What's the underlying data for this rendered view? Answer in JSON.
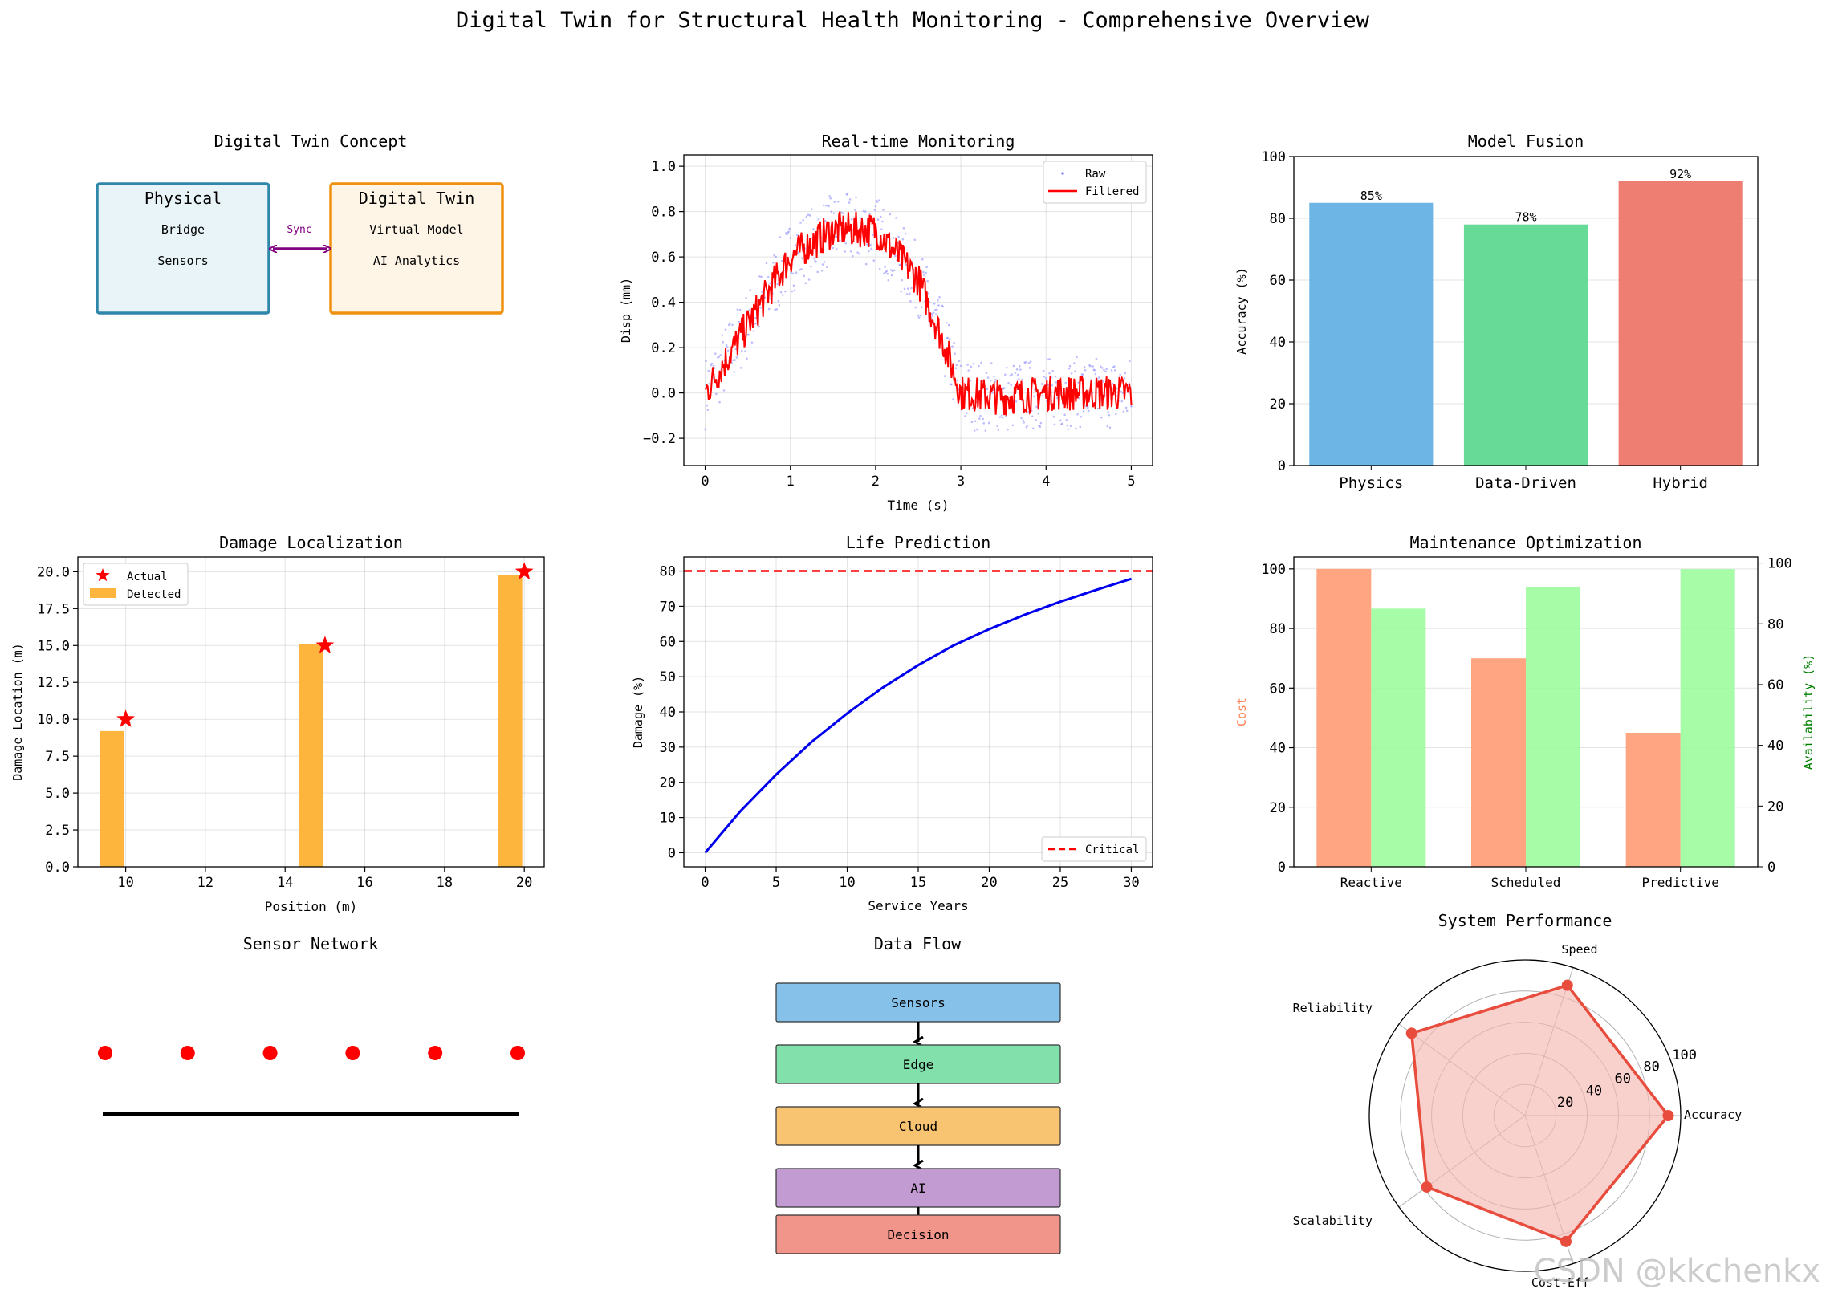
{
  "figure_title": "Digital Twin for Structural Health Monitoring - Comprehensive Overview",
  "watermark": "CSDN @kkchenkx",
  "colors": {
    "physical_border": "#2e86ab",
    "physical_fill": "#e8f4f8",
    "digital_border": "#f0900f",
    "digital_fill": "#fef5e7",
    "sync_arrow": "#800080",
    "raw": "#8888ff",
    "filtered": "#ff0000",
    "physics": "#5dade2",
    "data_driven": "#58d68d",
    "hybrid": "#ec7063",
    "detected": "#fdb53d",
    "actual": "#ff0000",
    "life_curve": "#0000ee",
    "critical": "#ff0000",
    "cost": "#ffa07a",
    "availability": "#98fb98",
    "cost_label": "#ff7f50",
    "availability_label": "#008000",
    "radar_line": "#e74c3c",
    "radar_fill": "#f5b7b1",
    "sensors_box": "#85c1e9",
    "edge_box": "#82e0aa",
    "cloud_box": "#f8c471",
    "ai_box": "#c39bd3",
    "decision_box": "#f1948a"
  },
  "concept": {
    "title": "Digital Twin Concept",
    "physical": {
      "title": "Physical",
      "line1": "Bridge",
      "line2": "Sensors"
    },
    "digital": {
      "title": "Digital Twin",
      "line1": "Virtual Model",
      "line2": "AI Analytics"
    },
    "sync_label": "Sync"
  },
  "chart_data": [
    {
      "id": "monitoring",
      "type": "line",
      "title": "Real-time Monitoring",
      "xlabel": "Time (s)",
      "ylabel": "Disp (mm)",
      "xlim": [
        -0.25,
        5.25
      ],
      "ylim": [
        -0.32,
        1.05
      ],
      "xticks": [
        0,
        1,
        2,
        3,
        4,
        5
      ],
      "yticks": [
        -0.2,
        0.0,
        0.2,
        0.4,
        0.6,
        0.8,
        1.0
      ],
      "ytick_labels": [
        "−0.2",
        "0.0",
        "0.2",
        "0.4",
        "0.6",
        "0.8",
        "1.0"
      ],
      "legend": "top-right",
      "series": [
        {
          "name": "Raw",
          "style": "points"
        },
        {
          "name": "Filtered",
          "style": "line"
        }
      ],
      "envelope": {
        "x": [
          0,
          0.5,
          1.0,
          1.5,
          2.0,
          2.5,
          2.8,
          3.0,
          3.5,
          4.0,
          4.5,
          5.0
        ],
        "y": [
          0.0,
          0.3,
          0.6,
          0.72,
          0.72,
          0.5,
          0.22,
          0.0,
          -0.02,
          0.0,
          0.0,
          0.0
        ]
      }
    },
    {
      "id": "fusion",
      "type": "bar",
      "title": "Model Fusion",
      "ylabel": "Accuracy (%)",
      "categories": [
        "Physics",
        "Data-Driven",
        "Hybrid"
      ],
      "values": [
        85,
        78,
        92
      ],
      "value_labels": [
        "85%",
        "78%",
        "92%"
      ],
      "ylim": [
        0,
        100
      ],
      "yticks": [
        0,
        20,
        40,
        60,
        80,
        100
      ]
    },
    {
      "id": "damage",
      "type": "bar",
      "title": "Damage Localization",
      "xlabel": "Position (m)",
      "ylabel": "Damage Location (m)",
      "xlim": [
        8.8,
        20.5
      ],
      "ylim": [
        0,
        21
      ],
      "xticks": [
        10,
        12,
        14,
        16,
        18,
        20
      ],
      "yticks": [
        0.0,
        2.5,
        5.0,
        7.5,
        10.0,
        12.5,
        15.0,
        17.5,
        20.0
      ],
      "ytick_labels": [
        "0.0",
        "2.5",
        "5.0",
        "7.5",
        "10.0",
        "12.5",
        "15.0",
        "17.5",
        "20.0"
      ],
      "legend": "top-left",
      "series": [
        {
          "name": "Actual",
          "x": [
            10,
            15,
            20
          ],
          "y": [
            10,
            15,
            20
          ]
        },
        {
          "name": "Detected",
          "x": [
            9.65,
            14.65,
            19.65
          ],
          "y": [
            9.2,
            15.1,
            19.8
          ],
          "width": 0.6
        }
      ]
    },
    {
      "id": "life",
      "type": "line",
      "title": "Life Prediction",
      "xlabel": "Service Years",
      "ylabel": "Damage (%)",
      "xlim": [
        -1.5,
        31.5
      ],
      "ylim": [
        -4,
        84
      ],
      "xticks": [
        0,
        5,
        10,
        15,
        20,
        25,
        30
      ],
      "yticks": [
        0,
        10,
        20,
        30,
        40,
        50,
        60,
        70,
        80
      ],
      "legend": "bottom-right",
      "series": [
        {
          "name": "",
          "x": [
            0,
            2.5,
            5,
            7.5,
            10,
            12.5,
            15,
            17.5,
            20,
            22.5,
            25,
            27.5,
            30
          ],
          "y": [
            0,
            11.9,
            22.2,
            31.5,
            39.6,
            46.9,
            53.3,
            58.9,
            63.5,
            67.6,
            71.3,
            74.6,
            77.8
          ]
        },
        {
          "name": "Critical",
          "constant": 80
        }
      ]
    },
    {
      "id": "maintenance",
      "type": "bar",
      "title": "Maintenance Optimization",
      "ylabel": "Cost",
      "y2label": "Availability (%)",
      "categories": [
        "Reactive",
        "Scheduled",
        "Predictive"
      ],
      "series": [
        {
          "name": "Cost",
          "values": [
            100,
            70,
            45
          ]
        },
        {
          "name": "Availability",
          "values": [
            85,
            92,
            98
          ]
        }
      ],
      "ylim": [
        0,
        104
      ],
      "y2lim": [
        0,
        102
      ],
      "yticks": [
        0,
        20,
        40,
        60,
        80,
        100
      ],
      "y2ticks": [
        0,
        20,
        40,
        60,
        80,
        100
      ]
    },
    {
      "id": "radar",
      "type": "radar",
      "title": "System Performance",
      "categories": [
        "Accuracy",
        "Speed",
        "Reliability",
        "Scalability",
        "Cost-Eff"
      ],
      "values": [
        92,
        88,
        90,
        78,
        85
      ],
      "rlim": [
        0,
        100
      ],
      "rticks": [
        20,
        40,
        60,
        80,
        100
      ]
    }
  ],
  "sensor_network": {
    "title": "Sensor Network",
    "sensor_count": 6
  },
  "data_flow": {
    "title": "Data Flow",
    "stages": [
      "Sensors",
      "Edge",
      "Cloud",
      "AI",
      "Decision"
    ]
  }
}
